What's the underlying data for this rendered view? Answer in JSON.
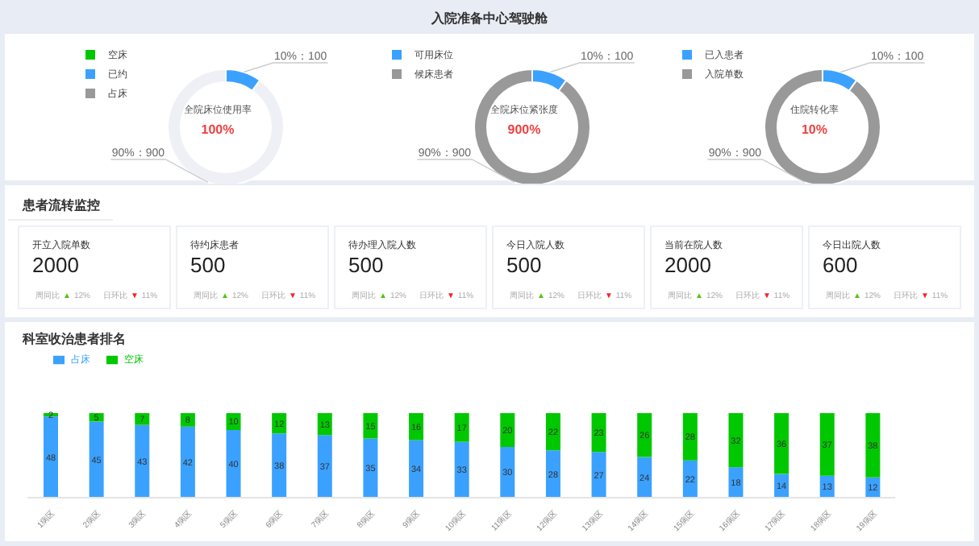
{
  "chart_data": [
    {
      "type": "other",
      "title": "入院准备中心驾驶舱"
    },
    {
      "type": "donut",
      "categories": [
        "空床",
        "已约",
        "占床"
      ],
      "values": [
        0,
        100,
        900
      ],
      "colors": [
        "#00c800",
        "#3ba1ff",
        "#eef0f5"
      ],
      "value_labels": [
        null,
        "10%：100",
        "90%：900"
      ],
      "annotations": [
        "全院床位使用率",
        "100%"
      ],
      "legend": "top left"
    },
    {
      "type": "donut",
      "categories": [
        "可用床位",
        "候床患者"
      ],
      "values": [
        100,
        900
      ],
      "colors": [
        "#3ba1ff",
        "#999999"
      ],
      "value_labels": [
        "10%：100",
        "90%：900"
      ],
      "annotations": [
        "全院床位紧张度",
        "900%"
      ],
      "legend": "top left"
    },
    {
      "type": "donut",
      "categories": [
        "已入患者",
        "入院单数"
      ],
      "values": [
        100,
        900
      ],
      "colors": [
        "#3ba1ff",
        "#999999"
      ],
      "value_labels": [
        "10%：100",
        "90%：900"
      ],
      "annotations": [
        "住院转化率",
        "10%"
      ],
      "legend": "top left"
    },
    {
      "type": "other",
      "title": "患者流转监控",
      "categories": [
        "开立入院单数",
        "待约床患者",
        "待办理入院人数",
        "今日入院人数",
        "当前在院人数",
        "今日出院人数"
      ],
      "values": [
        2000,
        500,
        500,
        500,
        2000,
        600
      ],
      "data_labels": true,
      "annotations": [
        "周同比 ▲ 12%",
        "日环比 ▼ 11%",
        "周同比 ▲ 12%",
        "日环比 ▼ 11%",
        "周同比 ▲ 12%",
        "日环比 ▼ 11%",
        "周同比 ▲ 12%",
        "日环比 ▼ 11%",
        "周同比 ▲ 12%",
        "日环比 ▼ 11%",
        "周同比 ▲ 12%",
        "日环比 ▼ 11%"
      ]
    },
    {
      "type": "bar",
      "title": "科室收治患者排名",
      "categories": [
        "1病区",
        "2病区",
        "3病区",
        "4病区",
        "5病区",
        "6病区",
        "7病区",
        "8病区",
        "9病区",
        "10病区",
        "11病区",
        "12病区",
        "13病区",
        "14病区",
        "15病区",
        "16病区",
        "17病区",
        "18病区",
        "19病区"
      ],
      "stacked": true,
      "data_labels": true,
      "legend": "top left",
      "tick_labels": "x",
      "grid": false,
      "series": [
        {
          "name": "占床",
          "color": "#3ba1ff",
          "values": [
            48,
            45,
            43,
            42,
            40,
            38,
            37,
            35,
            34,
            33,
            30,
            28,
            27,
            24,
            22,
            18,
            14,
            13,
            12
          ]
        },
        {
          "name": "空床",
          "color": "#00c800",
          "values": [
            2,
            5,
            7,
            8,
            10,
            12,
            13,
            15,
            16,
            17,
            20,
            22,
            23,
            26,
            28,
            32,
            36,
            37,
            38
          ]
        }
      ]
    }
  ]
}
